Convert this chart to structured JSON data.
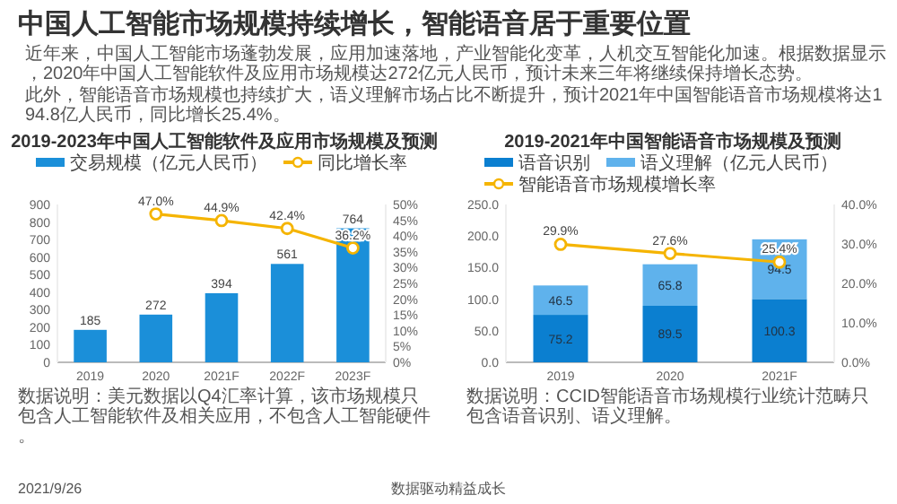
{
  "chart_data": [
    {
      "type": "other",
      "title": "中国人工智能市场规模持续增长，智能语音居于重要位置",
      "annotations": [
        "近年来，中国人工智能市场蓬勃发展，应用加速落地，产业智能化变革，人机交互智能化加速。根据数据显示，2020年中国人工智能软件及应用市场规模达272亿元人民币，预计未来三年将继续保持增长态势。",
        "此外，智能语音市场规模也持续扩大，语义理解市场占比不断提升，预计2021年中国智能语音市场规模将达194.8亿人民币，同比增长25.4%。",
        "2021/9/26",
        "数据驱动精益成长"
      ]
    },
    {
      "type": "bar",
      "title": "2019-2023年中国人工智能软件及应用市场规模及预测",
      "categories": [
        "2019",
        "2020",
        "2021F",
        "2022F",
        "2023F"
      ],
      "series": [
        {
          "name": "交易规模（亿元人民币）",
          "color": "#1b8fd9",
          "values": [
            185,
            272,
            394,
            561,
            764
          ],
          "value_labels": [
            "185",
            "272",
            "394",
            "561",
            "764"
          ]
        },
        {
          "name": "同比增长率",
          "type": "line",
          "axis": "y2",
          "color": "#f5b400",
          "values": [
            null,
            47.0,
            44.9,
            42.4,
            36.2
          ],
          "value_labels": [
            null,
            "47.0%",
            "44.9%",
            "42.4%",
            "36.2%"
          ]
        }
      ],
      "ylim": [
        0,
        900
      ],
      "yticks": [
        0,
        100,
        200,
        300,
        400,
        500,
        600,
        700,
        800,
        900
      ],
      "y2lim": [
        0,
        50
      ],
      "y2ticks": [
        {
          "value": 0,
          "label": "0%"
        },
        {
          "value": 5,
          "label": "5%"
        },
        {
          "value": 10,
          "label": "10%"
        },
        {
          "value": 15,
          "label": "15%"
        },
        {
          "value": 20,
          "label": "20%"
        },
        {
          "value": 25,
          "label": "25%"
        },
        {
          "value": 30,
          "label": "30%"
        },
        {
          "value": 35,
          "label": "35%"
        },
        {
          "value": 40,
          "label": "40%"
        },
        {
          "value": 45,
          "label": "45%"
        },
        {
          "value": 50,
          "label": "50%"
        }
      ],
      "marker": "circle",
      "legend": "top",
      "annotations": [
        "数据说明：美元数据以Q4汇率计算，该市场规模只包含人工智能软件及相关应用，不包含人工智能硬件。"
      ]
    },
    {
      "type": "bar",
      "title": "2019-2021年中国智能语音市场规模及预测",
      "categories": [
        "2019",
        "2020",
        "2021F"
      ],
      "stacked": true,
      "series": [
        {
          "name": "语音识别",
          "color": "#0b7fd0",
          "values": [
            75.2,
            89.5,
            100.3
          ],
          "value_labels": [
            "75.2",
            "89.5",
            "100.3"
          ]
        },
        {
          "name": "语义理解（亿元人民币）",
          "color": "#5fb2ec",
          "values": [
            46.5,
            65.8,
            94.5
          ],
          "value_labels": [
            "46.5",
            "65.8",
            "94.5"
          ]
        },
        {
          "name": "智能语音市场规模增长率",
          "type": "line",
          "axis": "y2",
          "color": "#f5b400",
          "values": [
            29.9,
            27.6,
            25.4
          ],
          "value_labels": [
            "29.9%",
            "27.6%",
            "25.4%"
          ]
        }
      ],
      "ylim": [
        0,
        250
      ],
      "yticks": [
        {
          "value": 0,
          "label": "0.0"
        },
        {
          "value": 50,
          "label": "50.0"
        },
        {
          "value": 100,
          "label": "100.0"
        },
        {
          "value": 150,
          "label": "150.0"
        },
        {
          "value": 200,
          "label": "200.0"
        },
        {
          "value": 250,
          "label": "250.0"
        }
      ],
      "y2lim": [
        0,
        40
      ],
      "y2ticks": [
        {
          "value": 0,
          "label": "0.0%"
        },
        {
          "value": 10,
          "label": "10.0%"
        },
        {
          "value": 20,
          "label": "20.0%"
        },
        {
          "value": 30,
          "label": "30.0%"
        },
        {
          "value": 40,
          "label": "40.0%"
        }
      ],
      "marker": "circle",
      "legend": "top",
      "annotations": [
        "数据说明：CCID智能语音市场规模行业统计范畴只包含语音识别、语义理解。"
      ]
    }
  ]
}
